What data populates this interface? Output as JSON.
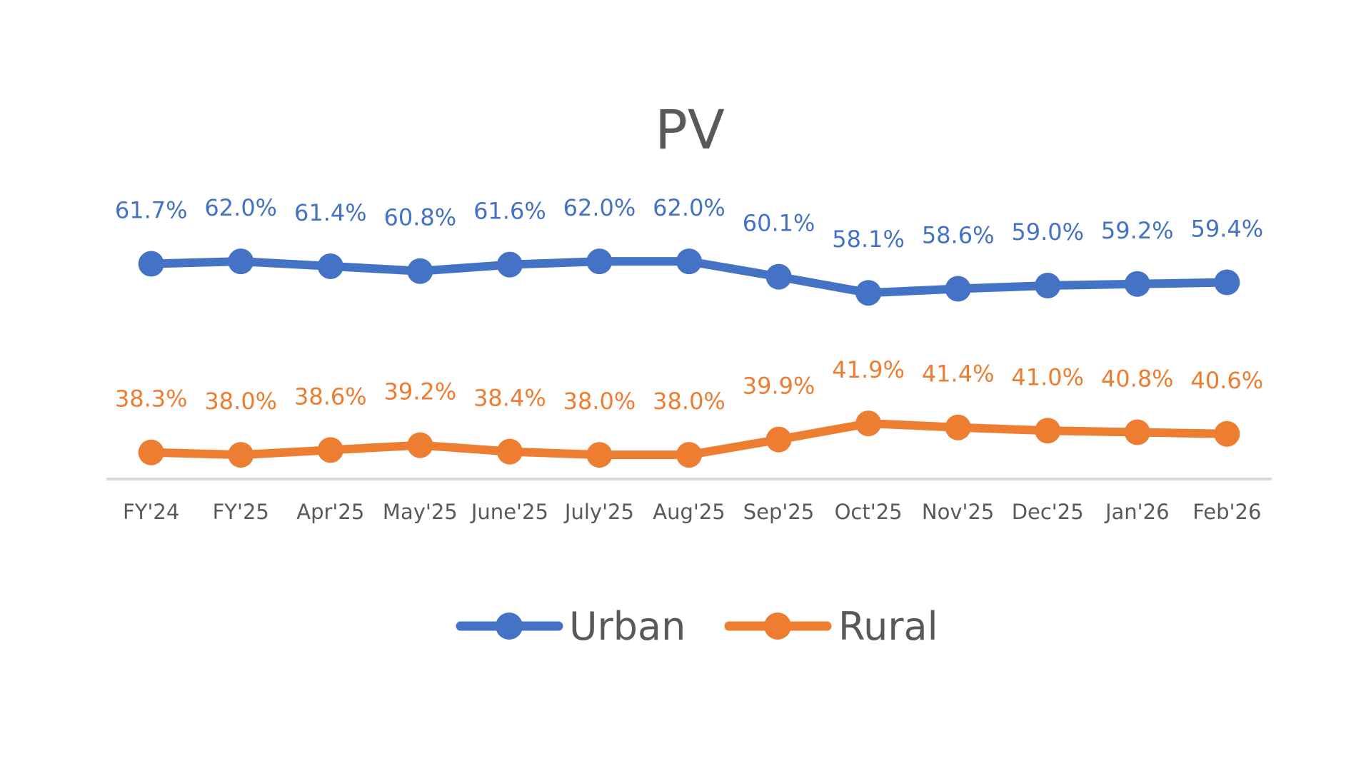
{
  "chart_data": {
    "type": "line",
    "title": "PV",
    "categories": [
      "FY'24",
      "FY'25",
      "Apr'25",
      "May'25",
      "June'25",
      "July'25",
      "Aug'25",
      "Sep'25",
      "Oct'25",
      "Nov'25",
      "Dec'25",
      "Jan'26",
      "Feb'26"
    ],
    "series": [
      {
        "name": "Urban",
        "color": "#4472C4",
        "values": [
          61.7,
          62.0,
          61.4,
          60.8,
          61.6,
          62.0,
          62.0,
          60.1,
          58.1,
          58.6,
          59.0,
          59.2,
          59.4
        ],
        "labels": [
          "61.7%",
          "62.0%",
          "61.4%",
          "60.8%",
          "61.6%",
          "62.0%",
          "62.0%",
          "60.1%",
          "58.1%",
          "58.6%",
          "59.0%",
          "59.2%",
          "59.4%"
        ]
      },
      {
        "name": "Rural",
        "color": "#ED7D31",
        "values": [
          38.3,
          38.0,
          38.6,
          39.2,
          38.4,
          38.0,
          38.0,
          39.9,
          41.9,
          41.4,
          41.0,
          40.8,
          40.6
        ],
        "labels": [
          "38.3%",
          "38.0%",
          "38.6%",
          "39.2%",
          "38.4%",
          "38.0%",
          "38.0%",
          "39.9%",
          "41.9%",
          "41.4%",
          "41.0%",
          "40.8%",
          "40.6%"
        ]
      }
    ],
    "xlabel": "",
    "ylabel": "",
    "ylim": [
      35,
      65
    ],
    "grid": false,
    "legend_position": "bottom",
    "data_labels": true
  }
}
